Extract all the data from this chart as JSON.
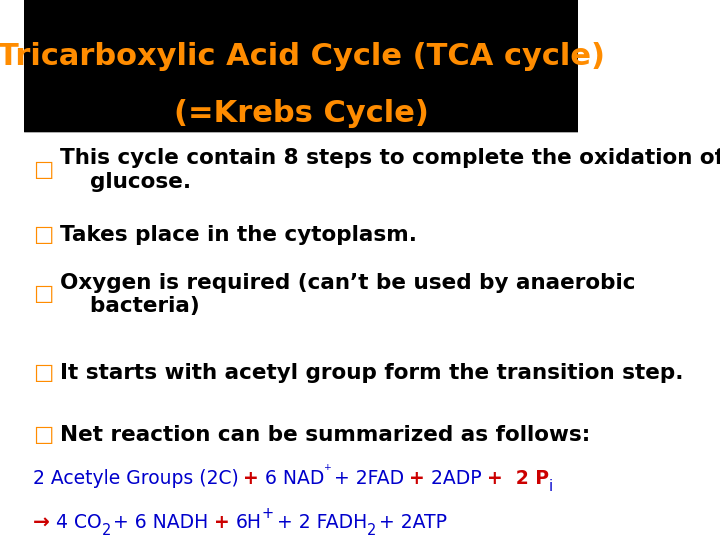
{
  "title_line1": "Tricarboxylic Acid Cycle (TCA cycle)",
  "title_line2": "(=Krebs Cycle)",
  "title_color": "#FF8C00",
  "title_bg_color": "#000000",
  "body_bg_color": "#FFFFFF",
  "bullet_color": "#FF8C00",
  "text_color": "#000000",
  "blue_color": "#0000CC",
  "red_color": "#CC0000",
  "bullets": [
    "This cycle contain 8 steps to complete the oxidation of\n    glucose.",
    "Takes place in the cytoplasm.",
    "Oxygen is required (can’t be used by anaerobic\n    bacteria)",
    "It starts with acetyl group form the transition step.",
    "Net reaction can be summarized as follows:"
  ],
  "title_fontsize": 22,
  "body_fontsize": 15.5,
  "equation1_fontsize": 13.5,
  "equation2_fontsize": 13.5
}
